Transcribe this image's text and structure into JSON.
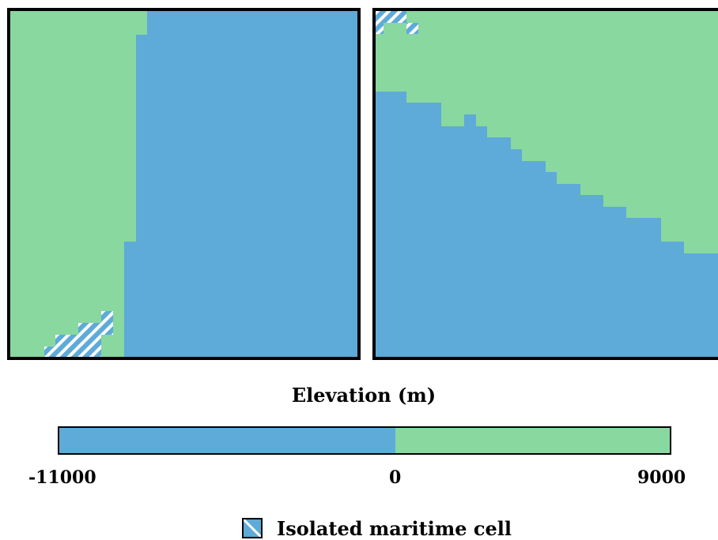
{
  "colors": {
    "ocean": "#5eaad8",
    "land": "#88d8a0",
    "hatch": "#ffffff"
  },
  "colorbar": {
    "title": "Elevation (m)",
    "min_label": "-11000",
    "zero_label": "0",
    "max_label": "9000",
    "min": -11000,
    "zero": 0,
    "max": 9000
  },
  "legend": {
    "label": "Isolated maritime cell",
    "icon": "hatched-ocean-swatch"
  },
  "panels": [
    {
      "name": "left-map",
      "grid": {
        "cols": 30,
        "rows": 30
      },
      "description_cells": "green land on west, blue ocean on east; isolated cells in lower left"
    },
    {
      "name": "right-map",
      "grid": {
        "cols": 30,
        "rows": 30
      }
    }
  ]
}
